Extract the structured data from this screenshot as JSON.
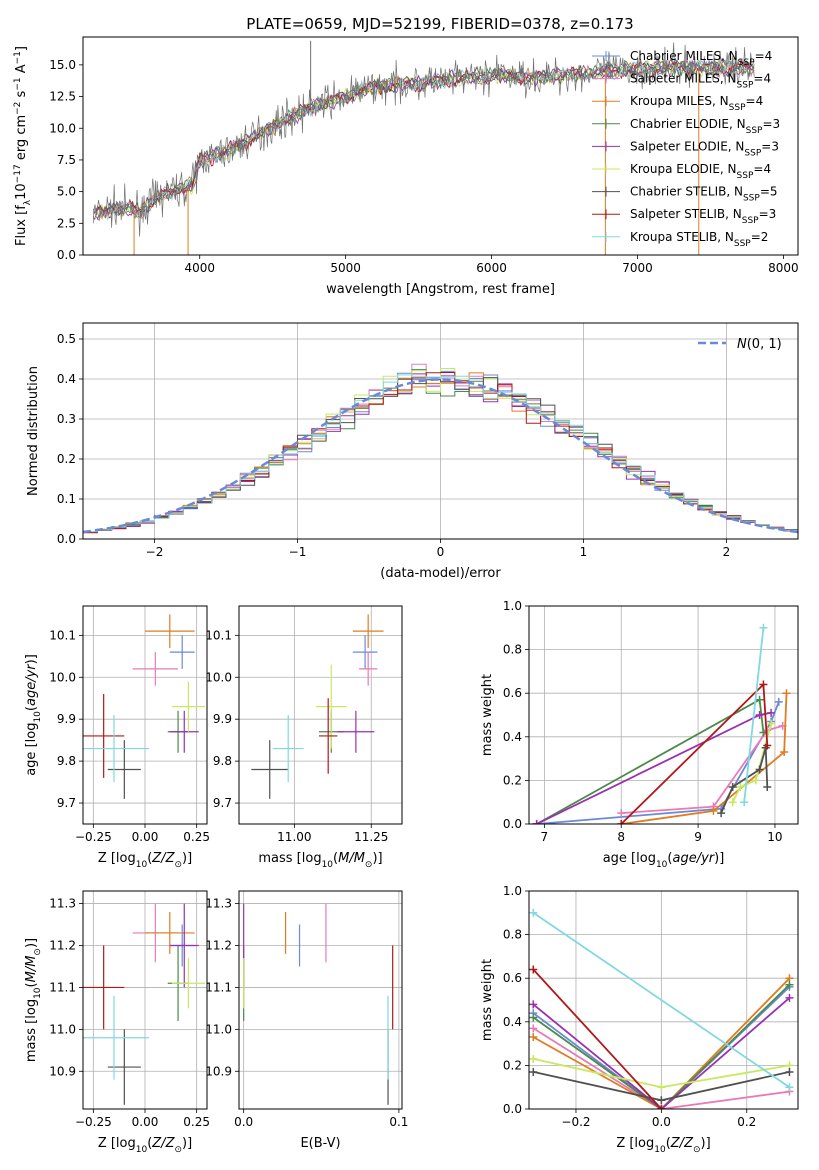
{
  "figure_title": "PLATE=0659, MJD=52199, FIBERID=0378, z=0.173",
  "colors": {
    "chabrier_miles": "#6a8ad8",
    "salpeter_miles": "#e87ab8",
    "kroupa_miles": "#e07b20",
    "chabrier_elodie": "#4a8a4a",
    "salpeter_elodie": "#9a30b0",
    "kroupa_elodie": "#c8e860",
    "chabrier_stelib": "#505050",
    "salpeter_stelib": "#b01818",
    "kroupa_stelib": "#80d8e0",
    "normal_curve": "#6a8ad8"
  },
  "chart_data": [
    {
      "id": "spectrum",
      "type": "line",
      "xlabel": "wavelength [Angstrom, rest frame]",
      "ylabel": "Flux [f$_\\lambda$10$^{-17}$ erg cm$^{-2}$ s$^{-1}$ A$^{-1}$]",
      "xlim": [
        3200,
        8100
      ],
      "ylim": [
        0,
        17.2
      ],
      "xticks": [
        4000,
        5000,
        6000,
        7000,
        8000
      ],
      "yticks": [
        0.0,
        2.5,
        5.0,
        7.5,
        10.0,
        12.5,
        15.0
      ],
      "grid": false,
      "legend_position": "right",
      "legend": [
        {
          "label": "Chabrier MILES, N",
          "sub": "SSP",
          "tail": "=4",
          "color_key": "chabrier_miles"
        },
        {
          "label": "Salpeter MILES, N",
          "sub": "SSP",
          "tail": "=4",
          "color_key": "salpeter_miles"
        },
        {
          "label": "Kroupa MILES, N",
          "sub": "SSP",
          "tail": "=4",
          "color_key": "kroupa_miles"
        },
        {
          "label": "Chabrier ELODIE, N",
          "sub": "SSP",
          "tail": "=3",
          "color_key": "chabrier_elodie"
        },
        {
          "label": "Salpeter ELODIE, N",
          "sub": "SSP",
          "tail": "=3",
          "color_key": "salpeter_elodie"
        },
        {
          "label": "Kroupa ELODIE, N",
          "sub": "SSP",
          "tail": "=4",
          "color_key": "kroupa_elodie"
        },
        {
          "label": "Chabrier STELIB, N",
          "sub": "SSP",
          "tail": "=5",
          "color_key": "chabrier_stelib"
        },
        {
          "label": "Salpeter STELIB, N",
          "sub": "SSP",
          "tail": "=3",
          "color_key": "salpeter_stelib"
        },
        {
          "label": "Kroupa STELIB, N",
          "sub": "SSP",
          "tail": "=2",
          "color_key": "kroupa_stelib"
        }
      ],
      "continuum": [
        [
          3270,
          3.2
        ],
        [
          3400,
          3.7
        ],
        [
          3600,
          3.5
        ],
        [
          3700,
          4.5
        ],
        [
          3850,
          5.2
        ],
        [
          3950,
          5.5
        ],
        [
          4000,
          7.5
        ],
        [
          4200,
          8.2
        ],
        [
          4400,
          9.5
        ],
        [
          4600,
          10.8
        ],
        [
          4800,
          11.8
        ],
        [
          5000,
          12.5
        ],
        [
          5200,
          13.3
        ],
        [
          5400,
          13.5
        ],
        [
          5700,
          13.8
        ],
        [
          6000,
          14.2
        ],
        [
          6300,
          14.0
        ],
        [
          6600,
          14.3
        ],
        [
          6900,
          14.6
        ],
        [
          7200,
          14.8
        ],
        [
          7500,
          14.8
        ],
        [
          7800,
          14.8
        ]
      ],
      "spikes": [
        [
          3550,
          0
        ],
        [
          3920,
          0
        ],
        [
          4760,
          16.9
        ],
        [
          6780,
          0
        ],
        [
          7420,
          0
        ]
      ]
    },
    {
      "id": "residual_histogram",
      "type": "histogram",
      "xlabel": "(data-model)/error",
      "ylabel": "Normed distribution",
      "xlim": [
        -2.5,
        2.5
      ],
      "ylim": [
        0,
        0.54
      ],
      "xticks": [
        -2,
        -1,
        0,
        1,
        2
      ],
      "yticks": [
        0.0,
        0.1,
        0.2,
        0.3,
        0.4,
        0.5
      ],
      "grid": true,
      "bin_width": 0.1,
      "legend_position": "top-right",
      "legend_label": "N(0,1)"
    },
    {
      "id": "age_vs_Z",
      "type": "scatter",
      "xlabel": "Z [log10(Z/Z⊙)]",
      "ylabel": "age [log10(age/yr)]",
      "xlim": [
        -0.3,
        0.3
      ],
      "ylim": [
        9.65,
        10.17
      ],
      "xticks": [
        -0.25,
        0.0,
        0.25
      ],
      "yticks": [
        9.7,
        9.8,
        9.9,
        10.0,
        10.1
      ],
      "grid": true,
      "points": [
        {
          "color_key": "chabrier_miles",
          "x": 0.18,
          "y": 10.06,
          "xerr": 0.06,
          "yerr": 0.04
        },
        {
          "color_key": "salpeter_miles",
          "x": 0.05,
          "y": 10.02,
          "xerr": 0.11,
          "yerr": 0.04
        },
        {
          "color_key": "kroupa_miles",
          "x": 0.12,
          "y": 10.11,
          "xerr": 0.12,
          "yerr": 0.04
        },
        {
          "color_key": "chabrier_elodie",
          "x": 0.16,
          "y": 9.87,
          "xerr": 0.05,
          "yerr": 0.05
        },
        {
          "color_key": "salpeter_elodie",
          "x": 0.19,
          "y": 9.87,
          "xerr": 0.07,
          "yerr": 0.05
        },
        {
          "color_key": "kroupa_elodie",
          "x": 0.21,
          "y": 9.93,
          "xerr": 0.08,
          "yerr": 0.06
        },
        {
          "color_key": "chabrier_stelib",
          "x": -0.1,
          "y": 9.78,
          "xerr": 0.08,
          "yerr": 0.07
        },
        {
          "color_key": "salpeter_stelib",
          "x": -0.2,
          "y": 9.86,
          "xerr": 0.1,
          "yerr": 0.1
        },
        {
          "color_key": "kroupa_stelib",
          "x": -0.15,
          "y": 9.83,
          "xerr": 0.17,
          "yerr": 0.08
        }
      ]
    },
    {
      "id": "age_vs_mass",
      "type": "scatter",
      "xlabel": "mass [log10(M/M⊙)]",
      "ylabel": "",
      "xlim": [
        10.82,
        11.35
      ],
      "ylim": [
        9.65,
        10.17
      ],
      "xticks": [
        11.0,
        11.25
      ],
      "yticks": [
        9.7,
        9.8,
        9.9,
        10.0,
        10.1
      ],
      "grid": true,
      "points": [
        {
          "color_key": "chabrier_miles",
          "x": 11.23,
          "y": 10.06,
          "xerr": 0.04,
          "yerr": 0.04
        },
        {
          "color_key": "salpeter_miles",
          "x": 11.24,
          "y": 10.02,
          "xerr": 0.03,
          "yerr": 0.04
        },
        {
          "color_key": "kroupa_miles",
          "x": 11.24,
          "y": 10.11,
          "xerr": 0.05,
          "yerr": 0.04
        },
        {
          "color_key": "chabrier_elodie",
          "x": 11.12,
          "y": 9.87,
          "xerr": 0.04,
          "yerr": 0.05
        },
        {
          "color_key": "salpeter_elodie",
          "x": 11.2,
          "y": 9.87,
          "xerr": 0.06,
          "yerr": 0.05
        },
        {
          "color_key": "kroupa_elodie",
          "x": 11.12,
          "y": 9.93,
          "xerr": 0.05,
          "yerr": 0.1
        },
        {
          "color_key": "chabrier_stelib",
          "x": 10.92,
          "y": 9.78,
          "xerr": 0.06,
          "yerr": 0.07
        },
        {
          "color_key": "salpeter_stelib",
          "x": 11.11,
          "y": 9.86,
          "xerr": 0.03,
          "yerr": 0.09
        },
        {
          "color_key": "kroupa_stelib",
          "x": 10.98,
          "y": 9.83,
          "xerr": 0.05,
          "yerr": 0.08
        }
      ]
    },
    {
      "id": "mass_weight_vs_age",
      "type": "line",
      "xlabel": "age [log10(age/yr)]",
      "ylabel": "mass weight",
      "xlim": [
        6.8,
        10.3
      ],
      "ylim": [
        0.0,
        1.0
      ],
      "xticks": [
        7,
        8,
        9,
        10
      ],
      "yticks": [
        0.0,
        0.2,
        0.4,
        0.6,
        0.8,
        1.0
      ],
      "grid": true,
      "series": [
        {
          "color_key": "chabrier_miles",
          "x": [
            6.9,
            9.3,
            9.95,
            10.05
          ],
          "y": [
            0.0,
            0.07,
            0.47,
            0.56
          ]
        },
        {
          "color_key": "salpeter_miles",
          "x": [
            8.0,
            9.2,
            9.9,
            10.1
          ],
          "y": [
            0.05,
            0.08,
            0.43,
            0.45
          ]
        },
        {
          "color_key": "kroupa_miles",
          "x": [
            8.0,
            9.2,
            10.12,
            10.15
          ],
          "y": [
            0.0,
            0.06,
            0.33,
            0.6
          ]
        },
        {
          "color_key": "chabrier_elodie",
          "x": [
            6.9,
            9.8,
            9.85
          ],
          "y": [
            0.0,
            0.57,
            0.42
          ]
        },
        {
          "color_key": "salpeter_elodie",
          "x": [
            6.9,
            9.8,
            9.95
          ],
          "y": [
            0.0,
            0.5,
            0.51
          ]
        },
        {
          "color_key": "kroupa_elodie",
          "x": [
            9.45,
            9.55,
            9.75,
            9.95
          ],
          "y": [
            0.1,
            0.17,
            0.2,
            0.46
          ]
        },
        {
          "color_key": "chabrier_stelib",
          "x": [
            9.3,
            9.45,
            9.8,
            9.88,
            9.9
          ],
          "y": [
            0.05,
            0.17,
            0.25,
            0.35,
            0.17
          ]
        },
        {
          "color_key": "salpeter_stelib",
          "x": [
            8.0,
            9.85,
            9.9
          ],
          "y": [
            0.0,
            0.64,
            0.36
          ]
        },
        {
          "color_key": "kroupa_stelib",
          "x": [
            9.6,
            9.85
          ],
          "y": [
            0.1,
            0.9
          ]
        }
      ]
    },
    {
      "id": "mass_vs_Z",
      "type": "scatter",
      "xlabel": "Z [log10(Z/Z⊙)]",
      "ylabel": "mass [log10(M/M⊙)]",
      "xlim": [
        -0.3,
        0.3
      ],
      "ylim": [
        10.81,
        11.33
      ],
      "xticks": [
        -0.25,
        0.0,
        0.25
      ],
      "yticks": [
        10.9,
        11.0,
        11.1,
        11.2,
        11.3
      ],
      "grid": true,
      "points": [
        {
          "color_key": "chabrier_miles",
          "x": 0.18,
          "y": 11.2,
          "xerr": 0.06,
          "yerr": 0.05
        },
        {
          "color_key": "salpeter_miles",
          "x": 0.05,
          "y": 11.23,
          "xerr": 0.11,
          "yerr": 0.07
        },
        {
          "color_key": "kroupa_miles",
          "x": 0.12,
          "y": 11.23,
          "xerr": 0.12,
          "yerr": 0.05
        },
        {
          "color_key": "chabrier_elodie",
          "x": 0.16,
          "y": 11.11,
          "xerr": 0.05,
          "yerr": 0.09
        },
        {
          "color_key": "salpeter_elodie",
          "x": 0.19,
          "y": 11.2,
          "xerr": 0.07,
          "yerr": 0.1
        },
        {
          "color_key": "kroupa_elodie",
          "x": 0.21,
          "y": 11.11,
          "xerr": 0.08,
          "yerr": 0.06
        },
        {
          "color_key": "chabrier_stelib",
          "x": -0.1,
          "y": 10.91,
          "xerr": 0.08,
          "yerr": 0.09
        },
        {
          "color_key": "salpeter_stelib",
          "x": -0.2,
          "y": 11.1,
          "xerr": 0.1,
          "yerr": 0.1
        },
        {
          "color_key": "kroupa_stelib",
          "x": -0.15,
          "y": 10.98,
          "xerr": 0.17,
          "yerr": 0.1
        }
      ]
    },
    {
      "id": "mass_vs_EBV",
      "type": "scatter",
      "xlabel": "E(B-V)",
      "ylabel": "",
      "xlim": [
        -0.003,
        0.102
      ],
      "ylim": [
        10.81,
        11.33
      ],
      "xticks": [
        0.0,
        0.1
      ],
      "yticks": [
        10.9,
        11.0,
        11.1,
        11.2,
        11.3
      ],
      "grid": true,
      "points": [
        {
          "color_key": "chabrier_miles",
          "x": 0.036,
          "y": 11.2,
          "xerr": 0,
          "yerr": 0.05
        },
        {
          "color_key": "salpeter_miles",
          "x": 0.053,
          "y": 11.23,
          "xerr": 0,
          "yerr": 0.07
        },
        {
          "color_key": "kroupa_miles",
          "x": 0.027,
          "y": 11.23,
          "xerr": 0,
          "yerr": 0.05
        },
        {
          "color_key": "chabrier_elodie",
          "x": 0.0,
          "y": 11.11,
          "xerr": 0,
          "yerr": 0.09
        },
        {
          "color_key": "salpeter_elodie",
          "x": 0.0,
          "y": 11.2,
          "xerr": 0,
          "yerr": 0.1
        },
        {
          "color_key": "kroupa_elodie",
          "x": 0.0,
          "y": 11.11,
          "xerr": 0,
          "yerr": 0.06
        },
        {
          "color_key": "chabrier_stelib",
          "x": 0.093,
          "y": 10.91,
          "xerr": 0,
          "yerr": 0.09
        },
        {
          "color_key": "salpeter_stelib",
          "x": 0.096,
          "y": 11.1,
          "xerr": 0,
          "yerr": 0.1
        },
        {
          "color_key": "kroupa_stelib",
          "x": 0.093,
          "y": 10.98,
          "xerr": 0,
          "yerr": 0.1
        }
      ]
    },
    {
      "id": "mass_weight_vs_Z",
      "type": "line",
      "xlabel": "Z [log10(Z/Z⊙)]",
      "ylabel": "mass weight",
      "xlim": [
        -0.31,
        0.32
      ],
      "ylim": [
        0.0,
        1.0
      ],
      "xticks": [
        -0.2,
        0.0,
        0.2
      ],
      "yticks": [
        0.0,
        0.2,
        0.4,
        0.6,
        0.8,
        1.0
      ],
      "grid": true,
      "series": [
        {
          "color_key": "chabrier_miles",
          "x": [
            -0.3,
            0.0,
            0.3
          ],
          "y": [
            0.44,
            0.0,
            0.56
          ]
        },
        {
          "color_key": "salpeter_miles",
          "x": [
            -0.3,
            0.0,
            0.3
          ],
          "y": [
            0.37,
            0.0,
            0.08
          ]
        },
        {
          "color_key": "kroupa_miles",
          "x": [
            -0.3,
            0.0,
            0.3
          ],
          "y": [
            0.33,
            0.0,
            0.6
          ]
        },
        {
          "color_key": "chabrier_elodie",
          "x": [
            -0.3,
            0.0,
            0.3
          ],
          "y": [
            0.42,
            0.0,
            0.57
          ]
        },
        {
          "color_key": "salpeter_elodie",
          "x": [
            -0.3,
            0.0,
            0.3
          ],
          "y": [
            0.48,
            0.0,
            0.51
          ]
        },
        {
          "color_key": "kroupa_elodie",
          "x": [
            -0.3,
            0.0,
            0.3
          ],
          "y": [
            0.23,
            0.1,
            0.2
          ]
        },
        {
          "color_key": "chabrier_stelib",
          "x": [
            -0.3,
            0.0,
            0.3
          ],
          "y": [
            0.17,
            0.04,
            0.17
          ]
        },
        {
          "color_key": "salpeter_stelib",
          "x": [
            -0.3,
            0.0
          ],
          "y": [
            0.64,
            0.0
          ]
        },
        {
          "color_key": "kroupa_stelib",
          "x": [
            -0.3,
            0.3
          ],
          "y": [
            0.9,
            0.1
          ]
        }
      ]
    }
  ]
}
